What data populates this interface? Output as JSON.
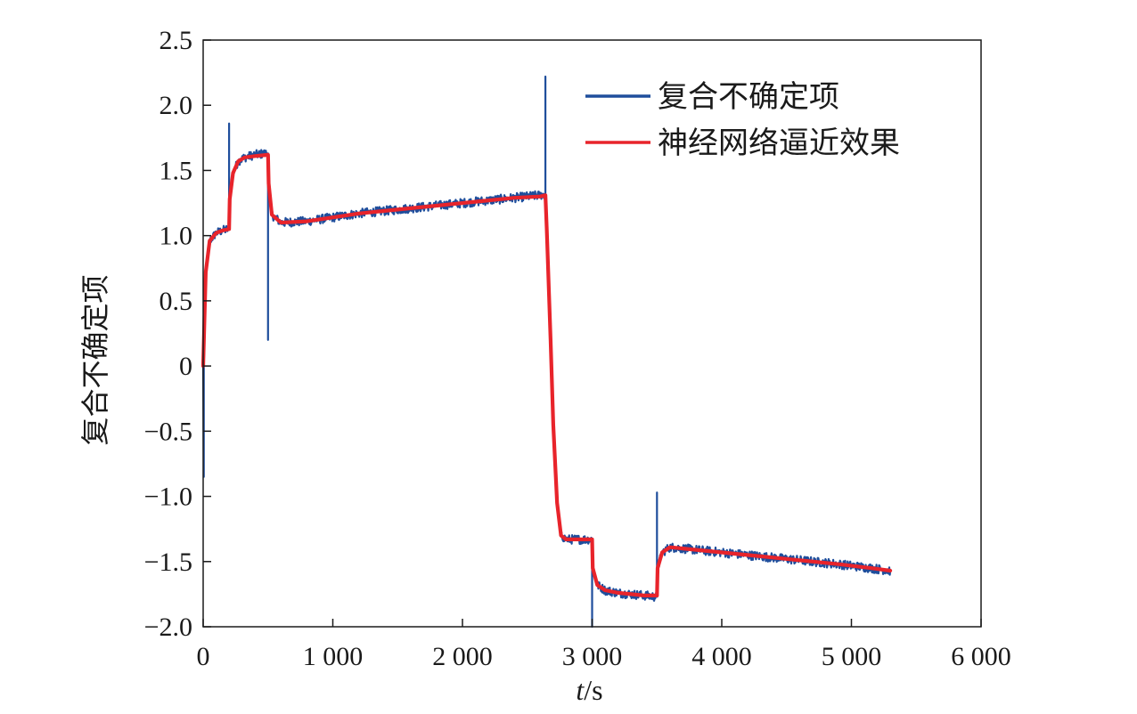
{
  "chart_data": {
    "type": "line",
    "title": "",
    "xlabel_italic": "t",
    "xlabel_unit": "/s",
    "ylabel": "复合不确定项",
    "xlim": [
      0,
      6000
    ],
    "ylim": [
      -2.0,
      2.5
    ],
    "x_ticks": [
      0,
      1000,
      2000,
      3000,
      4000,
      5000,
      6000
    ],
    "x_tick_labels": [
      "0",
      "1 000",
      "2 000",
      "3 000",
      "4 000",
      "5 000",
      "6 000"
    ],
    "y_ticks": [
      2.5,
      2.0,
      1.5,
      1.0,
      0.5,
      0,
      -0.5,
      -1.0,
      -1.5,
      -2.0
    ],
    "y_tick_labels": [
      "2.5",
      "2.0",
      "1.5",
      "1.0",
      "0.5",
      "0",
      "−0.5",
      "−1.0",
      "−1.5",
      "−2.0"
    ],
    "grid": false,
    "legend_position": "top-right",
    "series": [
      {
        "name": "复合不确定项",
        "color": "#1f4e9c",
        "style": "noisy",
        "x": [
          0,
          5,
          5,
          20,
          50,
          100,
          150,
          195,
          200,
          200,
          200,
          205,
          230,
          270,
          320,
          400,
          480,
          495,
          500,
          500,
          500,
          505,
          530,
          600,
          800,
          1000,
          1200,
          1500,
          1800,
          2100,
          2400,
          2600,
          2640,
          2640,
          2640,
          2650,
          2680,
          2700,
          2730,
          2760,
          2800,
          2850,
          2900,
          2990,
          3000,
          3000,
          3000,
          3005,
          3040,
          3100,
          3200,
          3300,
          3400,
          3490,
          3500,
          3500,
          3500,
          3505,
          3540,
          3600,
          3700,
          4000,
          4300,
          4600,
          4900,
          5150,
          5300
        ],
        "values": [
          0,
          -0.85,
          0,
          0.72,
          0.96,
          1.02,
          1.04,
          1.05,
          1.05,
          1.86,
          1.05,
          1.28,
          1.48,
          1.57,
          1.6,
          1.62,
          1.63,
          1.63,
          1.63,
          0.2,
          1.63,
          1.4,
          1.16,
          1.1,
          1.11,
          1.14,
          1.17,
          1.2,
          1.23,
          1.26,
          1.29,
          1.31,
          1.32,
          2.22,
          1.32,
          1.05,
          0.2,
          -0.45,
          -1.05,
          -1.3,
          -1.33,
          -1.33,
          -1.33,
          -1.33,
          -1.33,
          -2.0,
          -1.33,
          -1.55,
          -1.68,
          -1.72,
          -1.74,
          -1.75,
          -1.76,
          -1.77,
          -1.77,
          -0.97,
          -1.77,
          -1.55,
          -1.43,
          -1.39,
          -1.4,
          -1.43,
          -1.46,
          -1.49,
          -1.52,
          -1.55,
          -1.57
        ]
      },
      {
        "name": "神经网络逼近效果",
        "color": "#e8242b",
        "style": "smooth",
        "x": [
          0,
          20,
          50,
          100,
          150,
          200,
          205,
          230,
          270,
          320,
          400,
          500,
          505,
          530,
          600,
          800,
          1000,
          1200,
          1500,
          1800,
          2100,
          2400,
          2600,
          2640,
          2650,
          2680,
          2700,
          2730,
          2760,
          2800,
          2900,
          3000,
          3005,
          3040,
          3100,
          3200,
          3300,
          3400,
          3500,
          3505,
          3540,
          3600,
          3700,
          4000,
          4300,
          4600,
          4900,
          5150,
          5300
        ],
        "values": [
          0,
          0.72,
          0.96,
          1.02,
          1.04,
          1.05,
          1.28,
          1.48,
          1.57,
          1.6,
          1.61,
          1.62,
          1.4,
          1.16,
          1.1,
          1.11,
          1.14,
          1.17,
          1.2,
          1.23,
          1.26,
          1.29,
          1.3,
          1.31,
          1.05,
          0.2,
          -0.45,
          -1.05,
          -1.3,
          -1.33,
          -1.33,
          -1.33,
          -1.55,
          -1.68,
          -1.72,
          -1.74,
          -1.75,
          -1.76,
          -1.76,
          -1.55,
          -1.43,
          -1.39,
          -1.4,
          -1.43,
          -1.46,
          -1.49,
          -1.52,
          -1.55,
          -1.57
        ]
      }
    ]
  }
}
